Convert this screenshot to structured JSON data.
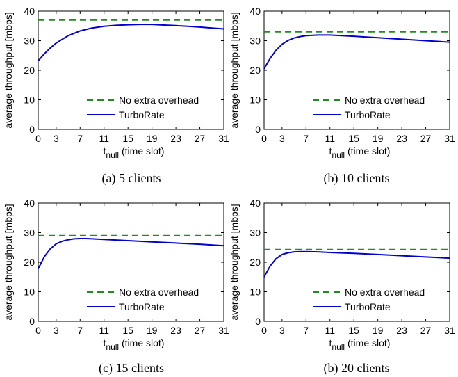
{
  "chart_data": [
    {
      "type": "line",
      "caption": "(a) 5 clients",
      "xlabel_main": "t",
      "xlabel_sub": "null",
      "xlabel_rest": " (time slot)",
      "ylabel": "average throughput [mbps]",
      "xlim": [
        0,
        31
      ],
      "ylim": [
        0,
        40
      ],
      "xticks": [
        0,
        3,
        7,
        11,
        15,
        19,
        23,
        27,
        31
      ],
      "yticks": [
        0,
        10,
        20,
        30,
        40
      ],
      "grid": false,
      "legend_position": "bottom-right",
      "series": [
        {
          "name": "No extra overhead",
          "style": "dashed",
          "color": "#228B22",
          "x": [
            0,
            31
          ],
          "y": [
            37,
            37
          ]
        },
        {
          "name": "TurboRate",
          "style": "solid",
          "color": "#0000CC",
          "x": [
            0,
            1,
            2,
            3,
            5,
            7,
            9,
            11,
            13,
            15,
            17,
            19,
            21,
            23,
            25,
            27,
            29,
            31
          ],
          "y": [
            23.2,
            25.5,
            27.5,
            29.2,
            31.7,
            33.3,
            34.3,
            34.9,
            35.2,
            35.4,
            35.5,
            35.5,
            35.3,
            35.1,
            34.9,
            34.6,
            34.3,
            34.0
          ]
        }
      ]
    },
    {
      "type": "line",
      "caption": "(b) 10 clients",
      "xlabel_main": "t",
      "xlabel_sub": "null",
      "xlabel_rest": " (time slot)",
      "ylabel": "average throughput [mbps]",
      "xlim": [
        0,
        31
      ],
      "ylim": [
        0,
        40
      ],
      "xticks": [
        0,
        3,
        7,
        11,
        15,
        19,
        23,
        27,
        31
      ],
      "yticks": [
        0,
        10,
        20,
        30,
        40
      ],
      "grid": false,
      "legend_position": "bottom-right",
      "series": [
        {
          "name": "No extra overhead",
          "style": "dashed",
          "color": "#228B22",
          "x": [
            0,
            31
          ],
          "y": [
            33,
            33
          ]
        },
        {
          "name": "TurboRate",
          "style": "solid",
          "color": "#0000CC",
          "x": [
            0,
            1,
            2,
            3,
            4,
            5,
            6,
            7,
            9,
            11,
            13,
            15,
            19,
            23,
            27,
            31
          ],
          "y": [
            20.5,
            24.0,
            26.8,
            28.8,
            30.1,
            30.9,
            31.4,
            31.7,
            31.9,
            31.9,
            31.7,
            31.5,
            31.0,
            30.5,
            30.0,
            29.5
          ]
        }
      ]
    },
    {
      "type": "line",
      "caption": "(c) 15 clients",
      "xlabel_main": "t",
      "xlabel_sub": "null",
      "xlabel_rest": " (time slot)",
      "ylabel": "average throughput [mbps]",
      "xlim": [
        0,
        31
      ],
      "ylim": [
        0,
        40
      ],
      "xticks": [
        0,
        3,
        7,
        11,
        15,
        19,
        23,
        27,
        31
      ],
      "yticks": [
        0,
        10,
        20,
        30,
        40
      ],
      "grid": false,
      "legend_position": "bottom-right",
      "series": [
        {
          "name": "No extra overhead",
          "style": "dashed",
          "color": "#228B22",
          "x": [
            0,
            31
          ],
          "y": [
            29,
            29
          ]
        },
        {
          "name": "TurboRate",
          "style": "solid",
          "color": "#0000CC",
          "x": [
            0,
            1,
            2,
            3,
            4,
            5,
            6,
            7,
            8,
            9,
            11,
            15,
            19,
            23,
            27,
            31
          ],
          "y": [
            17.8,
            21.8,
            24.5,
            26.2,
            27.1,
            27.6,
            27.9,
            28.0,
            28.0,
            27.9,
            27.7,
            27.3,
            26.9,
            26.5,
            26.1,
            25.6
          ]
        }
      ]
    },
    {
      "type": "line",
      "caption": "(b) 20 clients",
      "xlabel_main": "t",
      "xlabel_sub": "null",
      "xlabel_rest": " (time slot)",
      "ylabel": "average throughput [mbps]",
      "xlim": [
        0,
        31
      ],
      "ylim": [
        0,
        40
      ],
      "xticks": [
        0,
        3,
        7,
        11,
        15,
        19,
        23,
        27,
        31
      ],
      "yticks": [
        0,
        10,
        20,
        30,
        40
      ],
      "grid": false,
      "legend_position": "bottom-right",
      "series": [
        {
          "name": "No extra overhead",
          "style": "dashed",
          "color": "#228B22",
          "x": [
            0,
            31
          ],
          "y": [
            24.3,
            24.3
          ]
        },
        {
          "name": "TurboRate",
          "style": "solid",
          "color": "#0000CC",
          "x": [
            0,
            1,
            2,
            3,
            4,
            5,
            6,
            7,
            9,
            11,
            15,
            19,
            23,
            27,
            31
          ],
          "y": [
            15.0,
            18.7,
            21.2,
            22.6,
            23.2,
            23.5,
            23.6,
            23.6,
            23.5,
            23.3,
            23.0,
            22.6,
            22.2,
            21.8,
            21.4
          ]
        }
      ]
    }
  ]
}
